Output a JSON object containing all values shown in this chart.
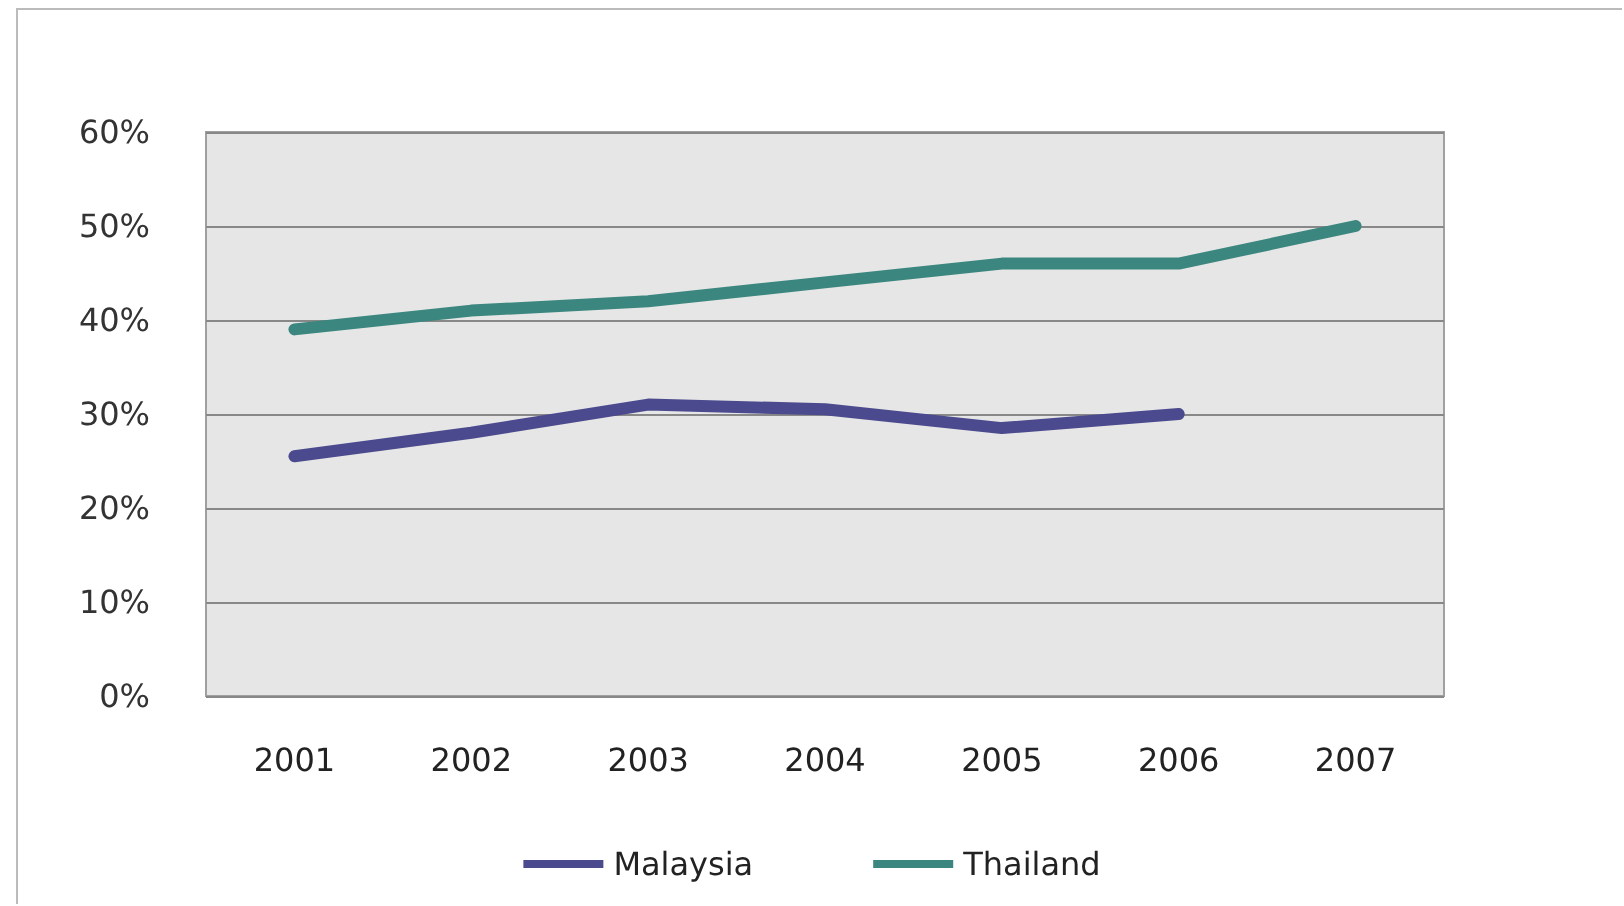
{
  "chart_data": {
    "type": "line",
    "categories": [
      "2001",
      "2002",
      "2003",
      "2004",
      "2005",
      "2006",
      "2007"
    ],
    "series": [
      {
        "name": "Malaysia",
        "color": "#4b4a8e",
        "values": [
          25.5,
          28,
          31,
          30.5,
          28.5,
          30,
          null
        ]
      },
      {
        "name": "Thailand",
        "color": "#3b877f",
        "values": [
          39,
          41,
          42,
          44,
          46,
          46,
          50
        ]
      }
    ],
    "ylim": [
      0,
      60
    ],
    "yticks": [
      {
        "value": 0,
        "label": "0%"
      },
      {
        "value": 10,
        "label": "10%"
      },
      {
        "value": 20,
        "label": "20%"
      },
      {
        "value": 30,
        "label": "30%"
      },
      {
        "value": 40,
        "label": "40%"
      },
      {
        "value": 50,
        "label": "50%"
      },
      {
        "value": 60,
        "label": "60%"
      }
    ],
    "grid": "y",
    "legend": "bottom",
    "marker": "none",
    "line_style": "solid"
  }
}
